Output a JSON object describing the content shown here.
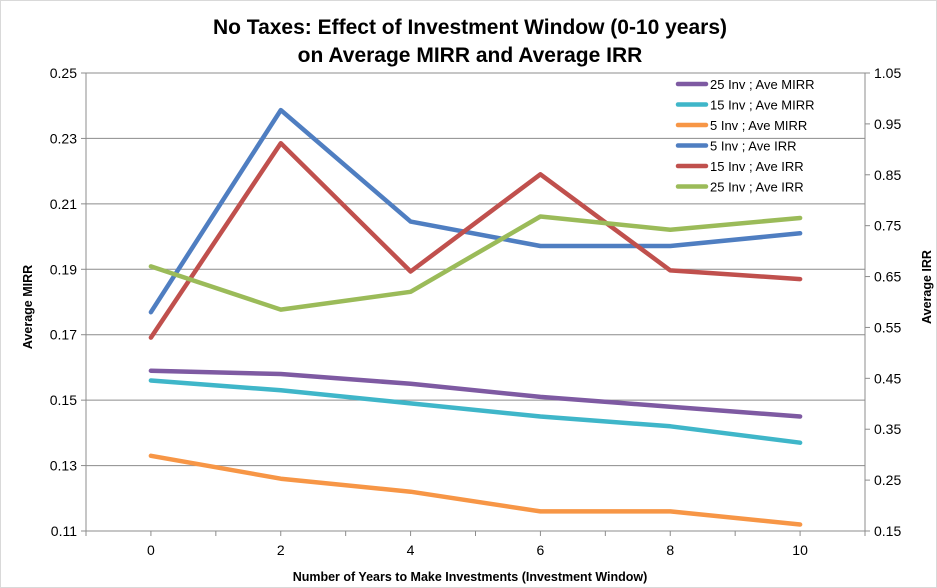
{
  "chart_data": {
    "type": "line",
    "title_lines": [
      "No Taxes: Effect of Investment Window (0-10 years)",
      "on Average MIRR and Average IRR"
    ],
    "xlabel": "Number of Years to Make Investments (Investment Window)",
    "ylabel_left": "Average MIRR",
    "ylabel_right": "Average IRR",
    "x": [
      0,
      2,
      4,
      6,
      8,
      10
    ],
    "x_ticks": [
      "0",
      "2",
      "4",
      "6",
      "8",
      "10"
    ],
    "xlim": [
      -1,
      11
    ],
    "ylim_left": [
      0.11,
      0.25
    ],
    "ylim_right": [
      0.15,
      1.05
    ],
    "y_ticks_left": [
      "0.11",
      "0.13",
      "0.15",
      "0.17",
      "0.19",
      "0.21",
      "0.23",
      "0.25"
    ],
    "y_ticks_right": [
      "0.15",
      "0.25",
      "0.35",
      "0.45",
      "0.55",
      "0.65",
      "0.75",
      "0.85",
      "0.95",
      "1.05"
    ],
    "grid": "horizontal",
    "legend_position": "top-right",
    "series": [
      {
        "name": "25 Inv ; Ave MIRR",
        "axis": "left",
        "color": "#7E5AA2",
        "values": [
          0.159,
          0.158,
          0.155,
          0.151,
          0.148,
          0.145
        ]
      },
      {
        "name": "15 Inv ; Ave MIRR",
        "axis": "left",
        "color": "#3FB6C9",
        "values": [
          0.156,
          0.153,
          0.149,
          0.145,
          0.142,
          0.137
        ]
      },
      {
        "name": "5 Inv ; Ave MIRR",
        "axis": "left",
        "color": "#F79646",
        "values": [
          0.133,
          0.126,
          0.122,
          0.116,
          0.116,
          0.112
        ]
      },
      {
        "name": "5 Inv ; Ave IRR",
        "axis": "right",
        "color": "#4F7EC1",
        "values": [
          0.58,
          0.977,
          0.758,
          0.71,
          0.71,
          0.735
        ]
      },
      {
        "name": "15 Inv ; Ave IRR",
        "axis": "right",
        "color": "#C0504D",
        "values": [
          0.53,
          0.912,
          0.66,
          0.851,
          0.662,
          0.645
        ]
      },
      {
        "name": "25 Inv ; Ave IRR",
        "axis": "right",
        "color": "#9BBB59",
        "values": [
          0.67,
          0.585,
          0.62,
          0.768,
          0.742,
          0.765
        ]
      }
    ]
  }
}
